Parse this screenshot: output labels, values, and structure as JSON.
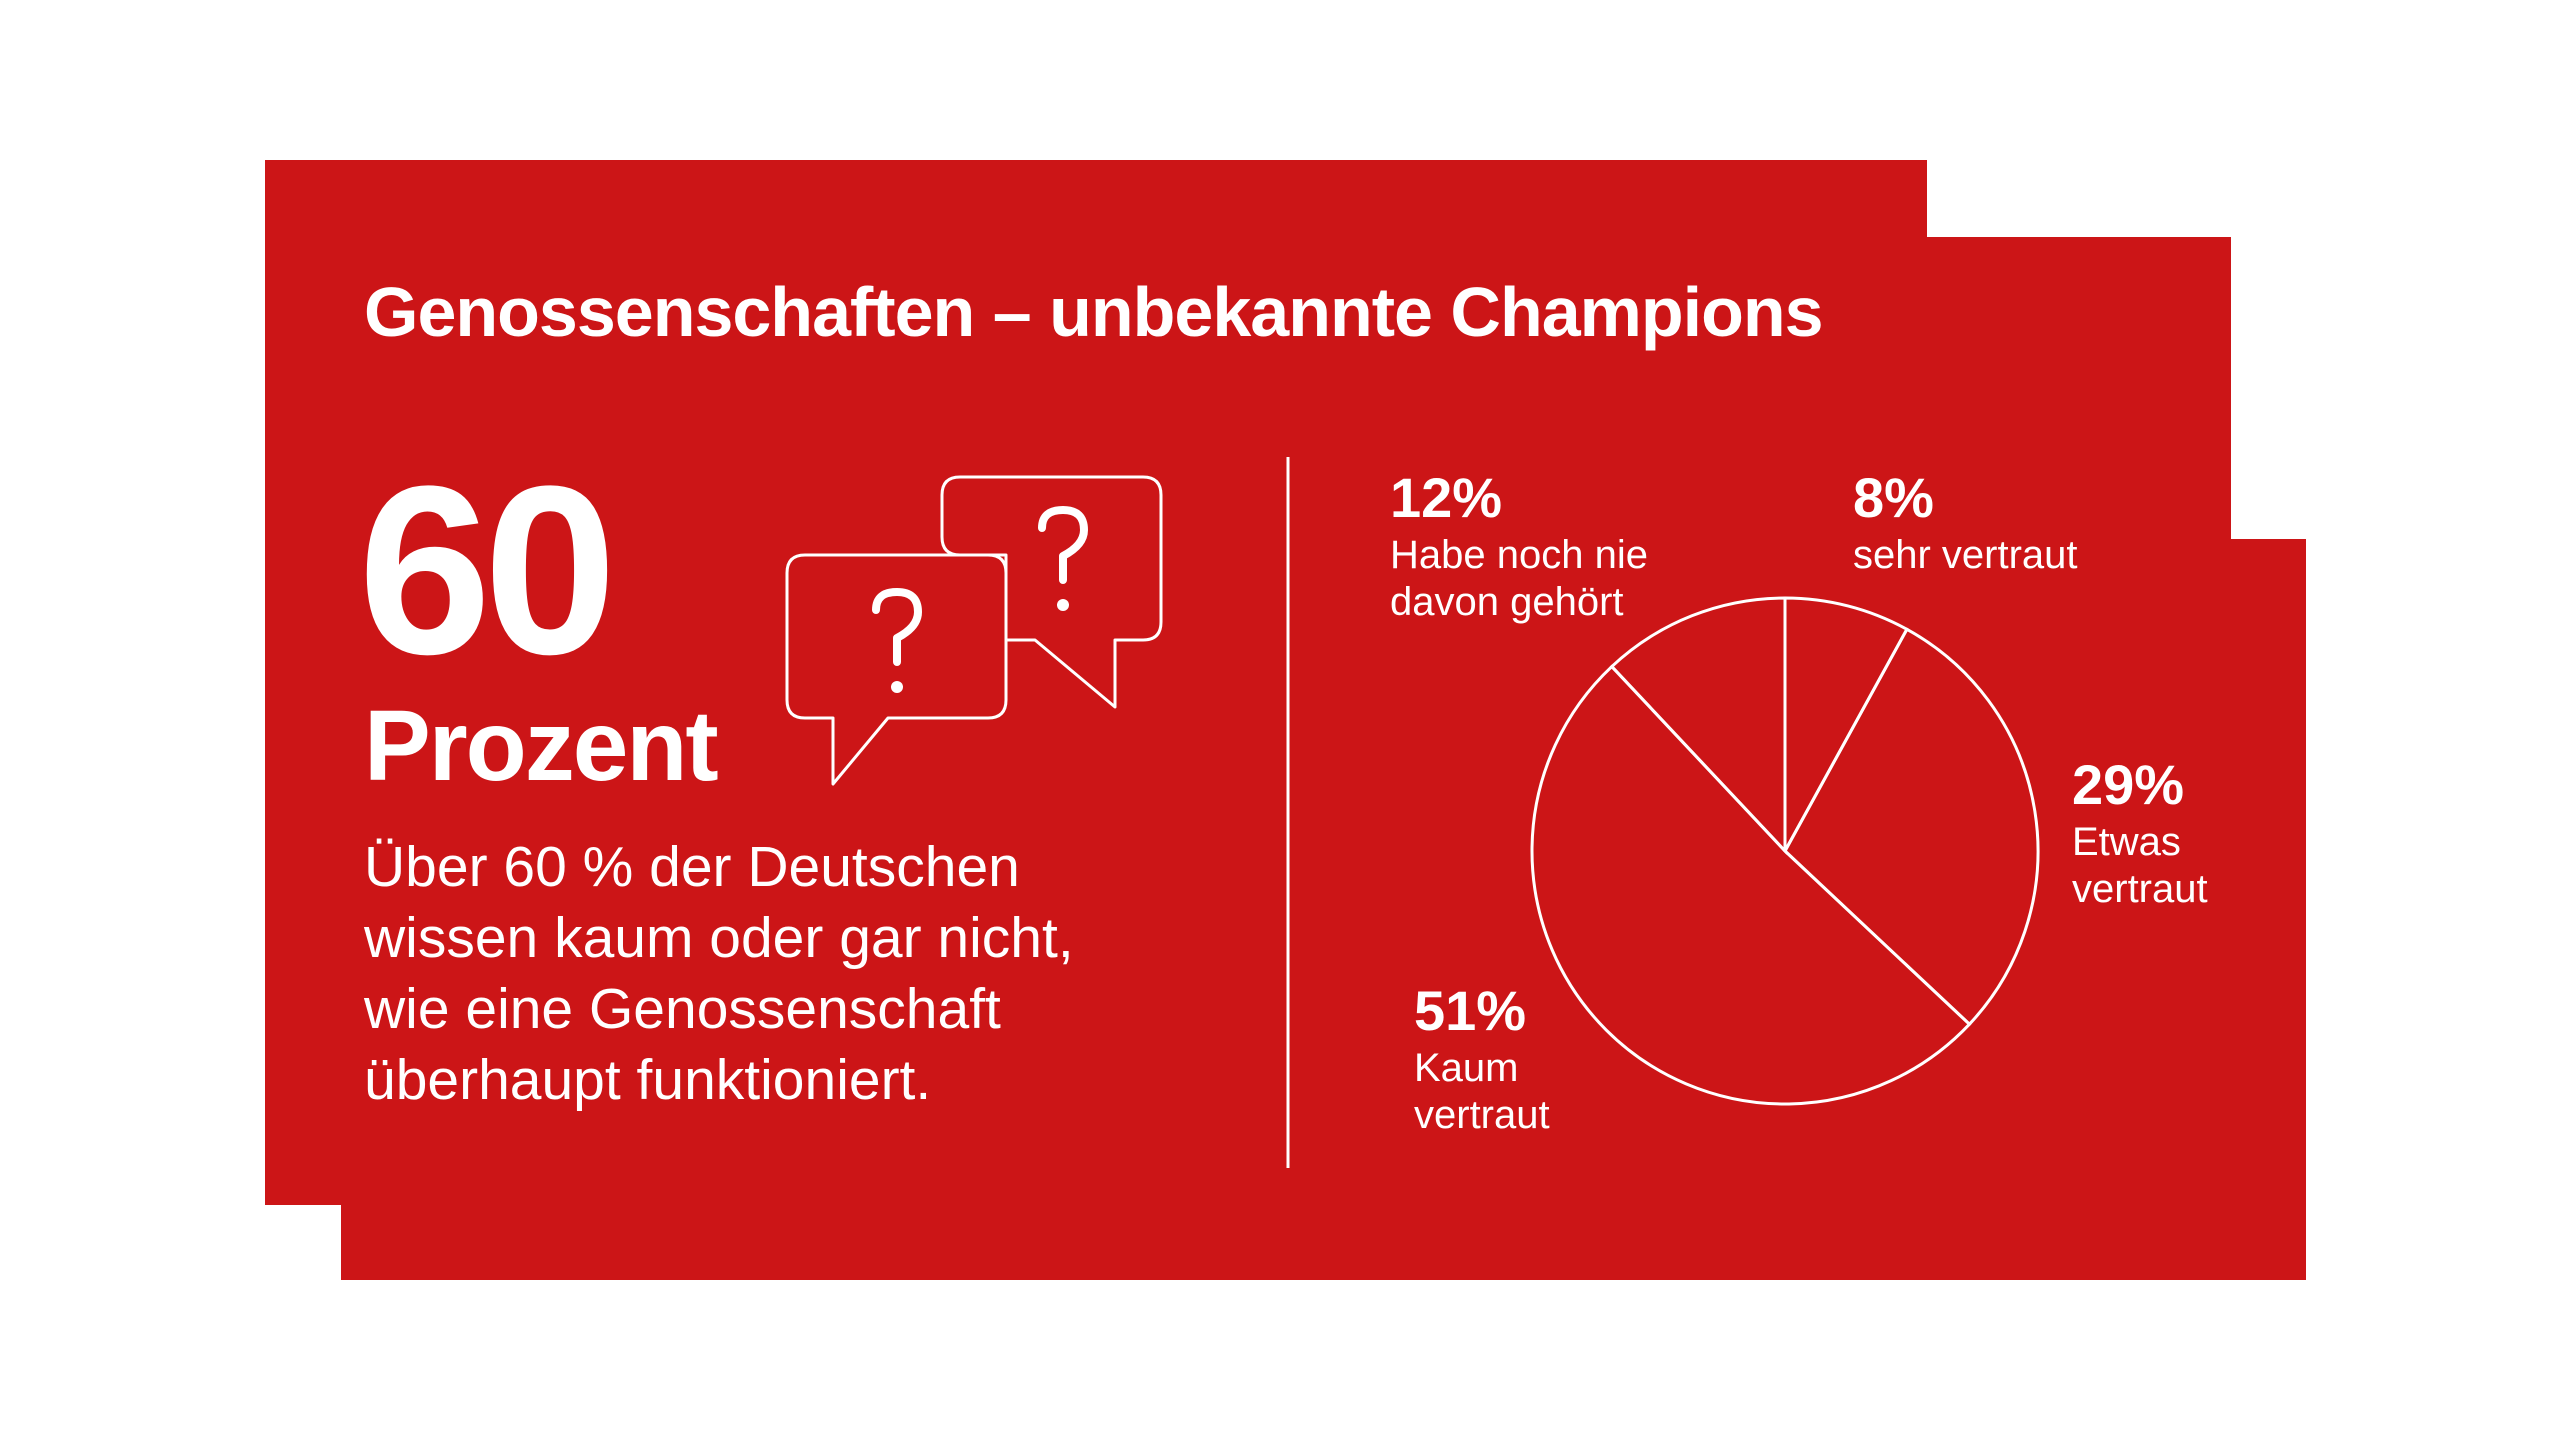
{
  "title": "Genossenschaften – unbekannte Champions",
  "headline": {
    "number": "60",
    "unit": "Prozent"
  },
  "description": [
    "Über 60 % der Deutschen",
    "wissen kaum oder gar nicht,",
    "wie eine Genossenschaft",
    "überhaupt funktioniert."
  ],
  "chart_data": {
    "type": "pie",
    "categories": [
      "sehr vertraut",
      "Etwas vertraut",
      "Kaum vertraut",
      "Habe noch nie davon gehört"
    ],
    "values": [
      8,
      29,
      51,
      12
    ],
    "value_labels": [
      "8%",
      "29%",
      "51%",
      "12%"
    ],
    "color": "#ffffff"
  }
}
